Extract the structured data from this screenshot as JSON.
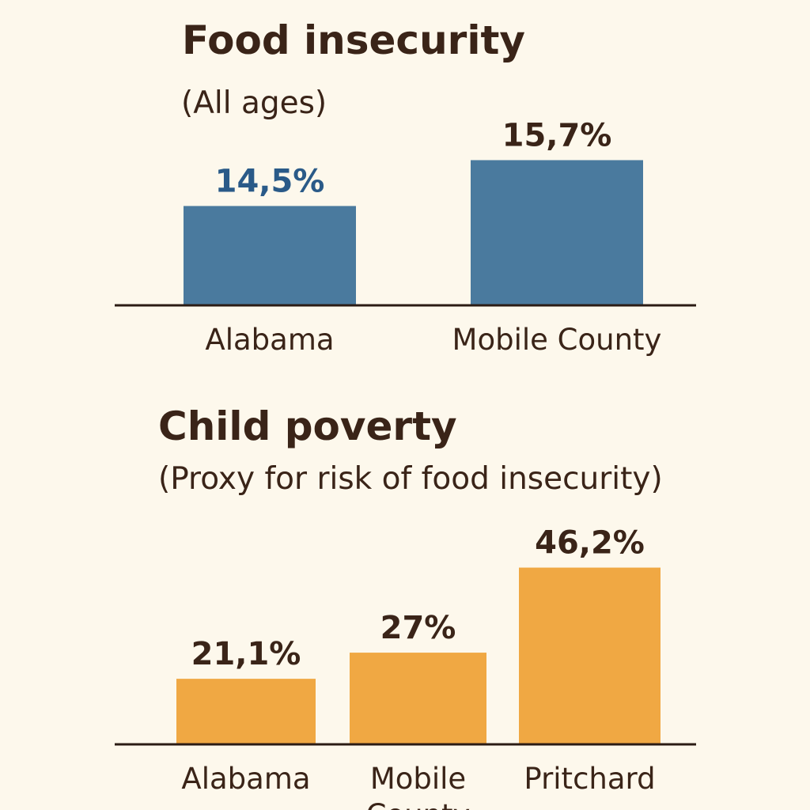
{
  "colors": {
    "background": "#fdf8ec",
    "text": "#3a2418",
    "blue_bar": "#4a7a9e",
    "blue_label": "#2a5a88",
    "orange_bar": "#f0a843",
    "axis": "#2b1c14"
  },
  "chart_data": [
    {
      "type": "bar",
      "title": "Food insecurity",
      "subtitle": "(All ages)",
      "categories": [
        "Alabama",
        "Mobile County"
      ],
      "values": [
        14.5,
        15.7
      ],
      "data_labels": [
        "14,5%",
        "15,7%"
      ],
      "ylim": [
        11.9,
        16.5
      ],
      "grid": false,
      "bar_color": "#4a7a9e"
    },
    {
      "type": "bar",
      "title": "Child poverty",
      "subtitle": "(Proxy for risk of food insecurity)",
      "categories": [
        "Alabama",
        "Mobile County",
        "Pritchard"
      ],
      "values": [
        21.1,
        27,
        46.2
      ],
      "data_labels": [
        "21,1%",
        "27%",
        "46,2%"
      ],
      "ylim": [
        6.3,
        50
      ],
      "grid": false,
      "bar_color": "#f0a843"
    }
  ]
}
